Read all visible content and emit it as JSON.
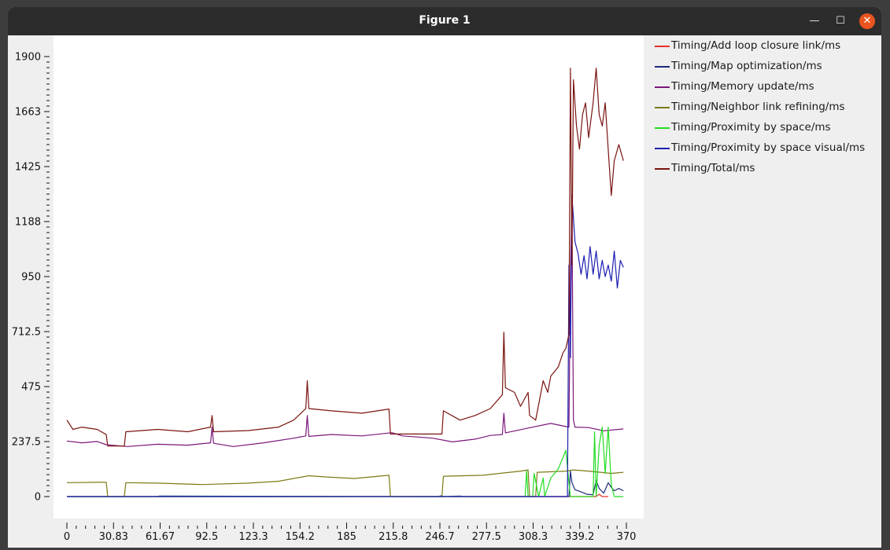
{
  "window": {
    "title": "Figure 1",
    "icons": {
      "minimize": "minimize-icon",
      "maximize": "maximize-icon",
      "close": "close-icon"
    }
  },
  "chart_data": {
    "type": "line",
    "title": "",
    "xlabel": "",
    "ylabel": "",
    "xlim": [
      0,
      370
    ],
    "ylim": [
      0,
      1900
    ],
    "xticks": [
      "0",
      "30.83",
      "61.67",
      "92.5",
      "123.3",
      "154.2",
      "185",
      "215.8",
      "246.7",
      "277.5",
      "308.3",
      "339.2",
      "370"
    ],
    "yticks": [
      "0",
      "237.5",
      "475",
      "712.5",
      "950",
      "1188",
      "1425",
      "1663",
      "1900"
    ],
    "legend_position": "right",
    "series": [
      {
        "name": "Timing/Add loop closure link/ms",
        "color": "#e8302b",
        "points": [
          [
            0,
            0
          ],
          [
            350,
            0
          ],
          [
            352,
            10
          ],
          [
            354,
            0
          ],
          [
            358,
            0
          ]
        ]
      },
      {
        "name": "Timing/Map optimization/ms",
        "color": "#1c2a7a",
        "points": [
          [
            0,
            0
          ],
          [
            60,
            0
          ],
          [
            61,
            2
          ],
          [
            150,
            1
          ],
          [
            246,
            0
          ],
          [
            247,
            3
          ],
          [
            249,
            0
          ],
          [
            260,
            2
          ],
          [
            262,
            0
          ],
          [
            332,
            0
          ],
          [
            333,
            110
          ],
          [
            334,
            60
          ],
          [
            336,
            30
          ],
          [
            340,
            20
          ],
          [
            344,
            10
          ],
          [
            348,
            8
          ],
          [
            350,
            70
          ],
          [
            352,
            35
          ],
          [
            355,
            15
          ],
          [
            358,
            60
          ],
          [
            360,
            40
          ],
          [
            362,
            25
          ],
          [
            365,
            35
          ],
          [
            368,
            25
          ]
        ]
      },
      {
        "name": "Timing/Memory update/ms",
        "color": "#7a177a",
        "points": [
          [
            0,
            240
          ],
          [
            10,
            232
          ],
          [
            20,
            238
          ],
          [
            26,
            224
          ],
          [
            40,
            216
          ],
          [
            60,
            226
          ],
          [
            80,
            222
          ],
          [
            95,
            232
          ],
          [
            96,
            300
          ],
          [
            97,
            230
          ],
          [
            110,
            216
          ],
          [
            130,
            232
          ],
          [
            150,
            252
          ],
          [
            158,
            262
          ],
          [
            159,
            350
          ],
          [
            160,
            260
          ],
          [
            175,
            268
          ],
          [
            195,
            262
          ],
          [
            215,
            276
          ],
          [
            222,
            262
          ],
          [
            242,
            252
          ],
          [
            255,
            236
          ],
          [
            270,
            248
          ],
          [
            280,
            264
          ],
          [
            288,
            268
          ],
          [
            289,
            360
          ],
          [
            290,
            275
          ],
          [
            305,
            296
          ],
          [
            320,
            316
          ],
          [
            332,
            300
          ],
          [
            333,
            950
          ],
          [
            334,
            1250
          ],
          [
            335,
            330
          ],
          [
            336,
            300
          ],
          [
            345,
            298
          ],
          [
            355,
            284
          ],
          [
            368,
            292
          ]
        ]
      },
      {
        "name": "Timing/Neighbor link refining/ms",
        "color": "#7c7a14",
        "points": [
          [
            0,
            60
          ],
          [
            26,
            62
          ],
          [
            27,
            0
          ],
          [
            38,
            0
          ],
          [
            39,
            60
          ],
          [
            60,
            58
          ],
          [
            90,
            52
          ],
          [
            120,
            58
          ],
          [
            140,
            66
          ],
          [
            160,
            90
          ],
          [
            170,
            85
          ],
          [
            190,
            78
          ],
          [
            213,
            92
          ],
          [
            214,
            0
          ],
          [
            248,
            0
          ],
          [
            249,
            88
          ],
          [
            275,
            92
          ],
          [
            300,
            110
          ],
          [
            305,
            115
          ],
          [
            306,
            0
          ],
          [
            310,
            0
          ],
          [
            311,
            105
          ],
          [
            330,
            110
          ],
          [
            335,
            115
          ],
          [
            345,
            110
          ],
          [
            360,
            100
          ],
          [
            368,
            105
          ]
        ]
      },
      {
        "name": "Timing/Proximity by space/ms",
        "color": "#22dd22",
        "points": [
          [
            0,
            0
          ],
          [
            303,
            0
          ],
          [
            304,
            110
          ],
          [
            305,
            0
          ],
          [
            308,
            0
          ],
          [
            309,
            100
          ],
          [
            312,
            0
          ],
          [
            315,
            80
          ],
          [
            316,
            0
          ],
          [
            320,
            80
          ],
          [
            325,
            120
          ],
          [
            330,
            200
          ],
          [
            332,
            60
          ],
          [
            333,
            0
          ],
          [
            348,
            0
          ],
          [
            349,
            280
          ],
          [
            350,
            0
          ],
          [
            352,
            220
          ],
          [
            354,
            300
          ],
          [
            356,
            100
          ],
          [
            358,
            300
          ],
          [
            360,
            50
          ],
          [
            362,
            0
          ],
          [
            368,
            0
          ]
        ]
      },
      {
        "name": "Timing/Proximity by space visual/ms",
        "color": "#1c1fb0",
        "points": [
          [
            0,
            0
          ],
          [
            331,
            0
          ],
          [
            332,
            1000
          ],
          [
            333,
            600
          ],
          [
            334,
            1300
          ],
          [
            336,
            1100
          ],
          [
            338,
            1050
          ],
          [
            340,
            960
          ],
          [
            342,
            1040
          ],
          [
            344,
            940
          ],
          [
            346,
            1080
          ],
          [
            348,
            960
          ],
          [
            350,
            1060
          ],
          [
            352,
            940
          ],
          [
            354,
            1020
          ],
          [
            356,
            950
          ],
          [
            358,
            1000
          ],
          [
            360,
            930
          ],
          [
            362,
            1060
          ],
          [
            364,
            900
          ],
          [
            366,
            1020
          ],
          [
            368,
            990
          ]
        ]
      },
      {
        "name": "Timing/Total/ms",
        "color": "#7a1410",
        "points": [
          [
            0,
            330
          ],
          [
            4,
            290
          ],
          [
            10,
            300
          ],
          [
            20,
            290
          ],
          [
            26,
            268
          ],
          [
            27,
            218
          ],
          [
            38,
            218
          ],
          [
            39,
            280
          ],
          [
            60,
            290
          ],
          [
            80,
            280
          ],
          [
            95,
            300
          ],
          [
            96,
            350
          ],
          [
            97,
            280
          ],
          [
            120,
            285
          ],
          [
            140,
            300
          ],
          [
            150,
            330
          ],
          [
            158,
            380
          ],
          [
            159,
            500
          ],
          [
            160,
            380
          ],
          [
            175,
            370
          ],
          [
            195,
            360
          ],
          [
            213,
            378
          ],
          [
            214,
            270
          ],
          [
            248,
            270
          ],
          [
            249,
            370
          ],
          [
            260,
            330
          ],
          [
            270,
            350
          ],
          [
            280,
            380
          ],
          [
            288,
            440
          ],
          [
            289,
            710
          ],
          [
            290,
            470
          ],
          [
            296,
            450
          ],
          [
            300,
            390
          ],
          [
            305,
            450
          ],
          [
            306,
            350
          ],
          [
            310,
            330
          ],
          [
            315,
            500
          ],
          [
            318,
            450
          ],
          [
            320,
            520
          ],
          [
            325,
            560
          ],
          [
            328,
            620
          ],
          [
            330,
            640
          ],
          [
            332,
            700
          ],
          [
            333,
            1850
          ],
          [
            334,
            1000
          ],
          [
            335,
            1800
          ],
          [
            337,
            1600
          ],
          [
            339,
            1500
          ],
          [
            341,
            1650
          ],
          [
            343,
            1700
          ],
          [
            345,
            1550
          ],
          [
            348,
            1700
          ],
          [
            350,
            1850
          ],
          [
            352,
            1650
          ],
          [
            354,
            1600
          ],
          [
            356,
            1700
          ],
          [
            358,
            1500
          ],
          [
            360,
            1300
          ],
          [
            362,
            1450
          ],
          [
            365,
            1520
          ],
          [
            368,
            1450
          ]
        ]
      }
    ]
  }
}
